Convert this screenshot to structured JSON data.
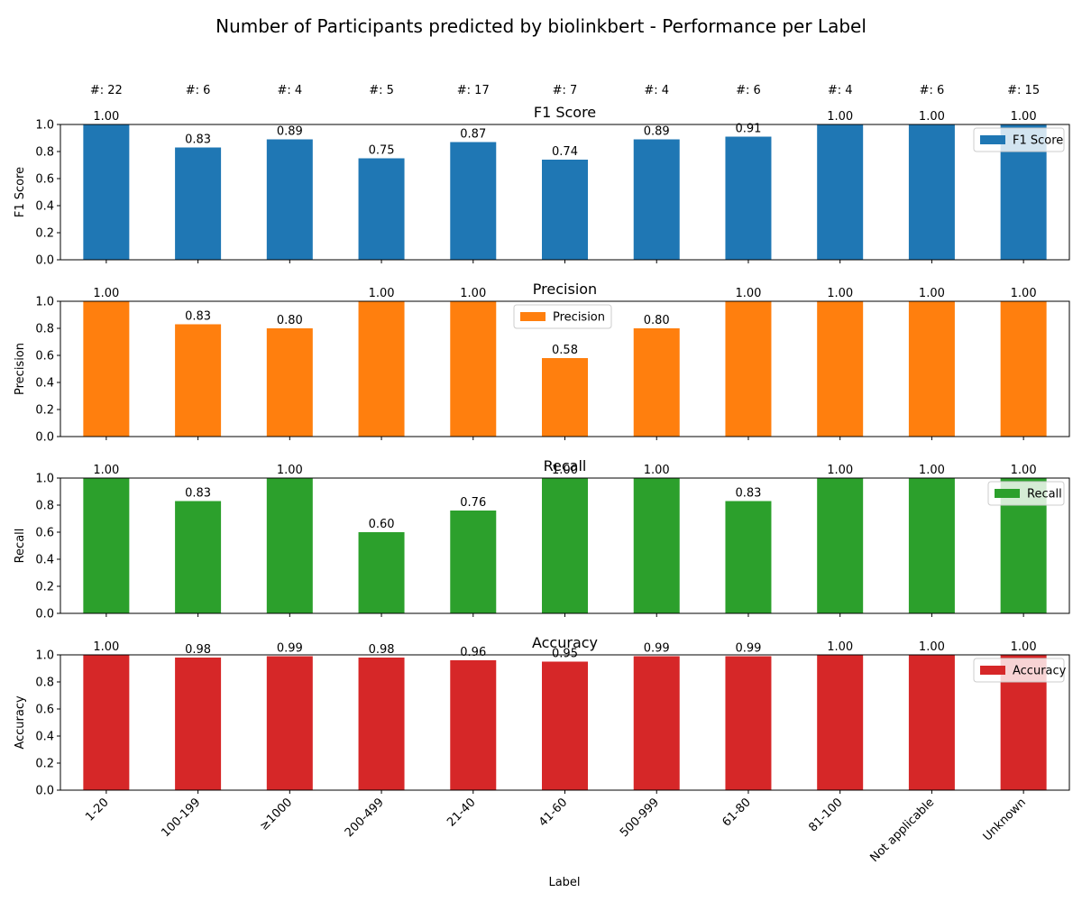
{
  "title": "Number of Participants predicted by biolinkbert - Performance per Label",
  "x_axis_label": "Label",
  "chart_data": [
    {
      "type": "bar",
      "title": "F1 Score",
      "ylabel": "F1 Score",
      "ylim": [
        0,
        1.0
      ],
      "yticks": [
        "0.0",
        "0.2",
        "0.4",
        "0.6",
        "0.8",
        "1.0"
      ],
      "legend": "F1 Score",
      "legend_position": "right",
      "color": "#1f77b4",
      "categories": [
        "1-20",
        "100-199",
        "≥1000",
        "200-499",
        "21-40",
        "41-60",
        "500-999",
        "61-80",
        "81-100",
        "Not applicable",
        "Unknown"
      ],
      "counts": [
        "#: 22",
        "#: 6",
        "#: 4",
        "#: 5",
        "#: 17",
        "#: 7",
        "#: 4",
        "#: 6",
        "#: 4",
        "#: 6",
        "#: 15"
      ],
      "values": [
        1.0,
        0.83,
        0.89,
        0.75,
        0.87,
        0.74,
        0.89,
        0.91,
        1.0,
        1.0,
        1.0
      ],
      "value_labels": [
        "1.00",
        "0.83",
        "0.89",
        "0.75",
        "0.87",
        "0.74",
        "0.89",
        "0.91",
        "1.00",
        "1.00",
        "1.00"
      ]
    },
    {
      "type": "bar",
      "title": "Precision",
      "ylabel": "Precision",
      "ylim": [
        0,
        1.0
      ],
      "yticks": [
        "0.0",
        "0.2",
        "0.4",
        "0.6",
        "0.8",
        "1.0"
      ],
      "legend": "Precision",
      "legend_position": "upper center",
      "color": "#ff7f0e",
      "categories": [
        "1-20",
        "100-199",
        "≥1000",
        "200-499",
        "21-40",
        "41-60",
        "500-999",
        "61-80",
        "81-100",
        "Not applicable",
        "Unknown"
      ],
      "values": [
        1.0,
        0.83,
        0.8,
        1.0,
        1.0,
        0.58,
        0.8,
        1.0,
        1.0,
        1.0,
        1.0
      ],
      "value_labels": [
        "1.00",
        "0.83",
        "0.80",
        "1.00",
        "1.00",
        "0.58",
        "0.80",
        "1.00",
        "1.00",
        "1.00",
        "1.00"
      ]
    },
    {
      "type": "bar",
      "title": "Recall",
      "ylabel": "Recall",
      "ylim": [
        0,
        1.0
      ],
      "yticks": [
        "0.0",
        "0.2",
        "0.4",
        "0.6",
        "0.8",
        "1.0"
      ],
      "legend": "Recall",
      "legend_position": "right",
      "color": "#2ca02c",
      "categories": [
        "1-20",
        "100-199",
        "≥1000",
        "200-499",
        "21-40",
        "41-60",
        "500-999",
        "61-80",
        "81-100",
        "Not applicable",
        "Unknown"
      ],
      "values": [
        1.0,
        0.83,
        1.0,
        0.6,
        0.76,
        1.0,
        1.0,
        0.83,
        1.0,
        1.0,
        1.0
      ],
      "value_labels": [
        "1.00",
        "0.83",
        "1.00",
        "0.60",
        "0.76",
        "1.00",
        "1.00",
        "0.83",
        "1.00",
        "1.00",
        "1.00"
      ]
    },
    {
      "type": "bar",
      "title": "Accuracy",
      "ylabel": "Accuracy",
      "ylim": [
        0,
        1.0
      ],
      "yticks": [
        "0.0",
        "0.2",
        "0.4",
        "0.6",
        "0.8",
        "1.0"
      ],
      "legend": "Accuracy",
      "legend_position": "right",
      "color": "#d62728",
      "categories": [
        "1-20",
        "100-199",
        "≥1000",
        "200-499",
        "21-40",
        "41-60",
        "500-999",
        "61-80",
        "81-100",
        "Not applicable",
        "Unknown"
      ],
      "values": [
        1.0,
        0.98,
        0.99,
        0.98,
        0.96,
        0.95,
        0.99,
        0.99,
        1.0,
        1.0,
        1.0
      ],
      "value_labels": [
        "1.00",
        "0.98",
        "0.99",
        "0.98",
        "0.96",
        "0.95",
        "0.99",
        "0.99",
        "1.00",
        "1.00",
        "1.00"
      ]
    }
  ]
}
